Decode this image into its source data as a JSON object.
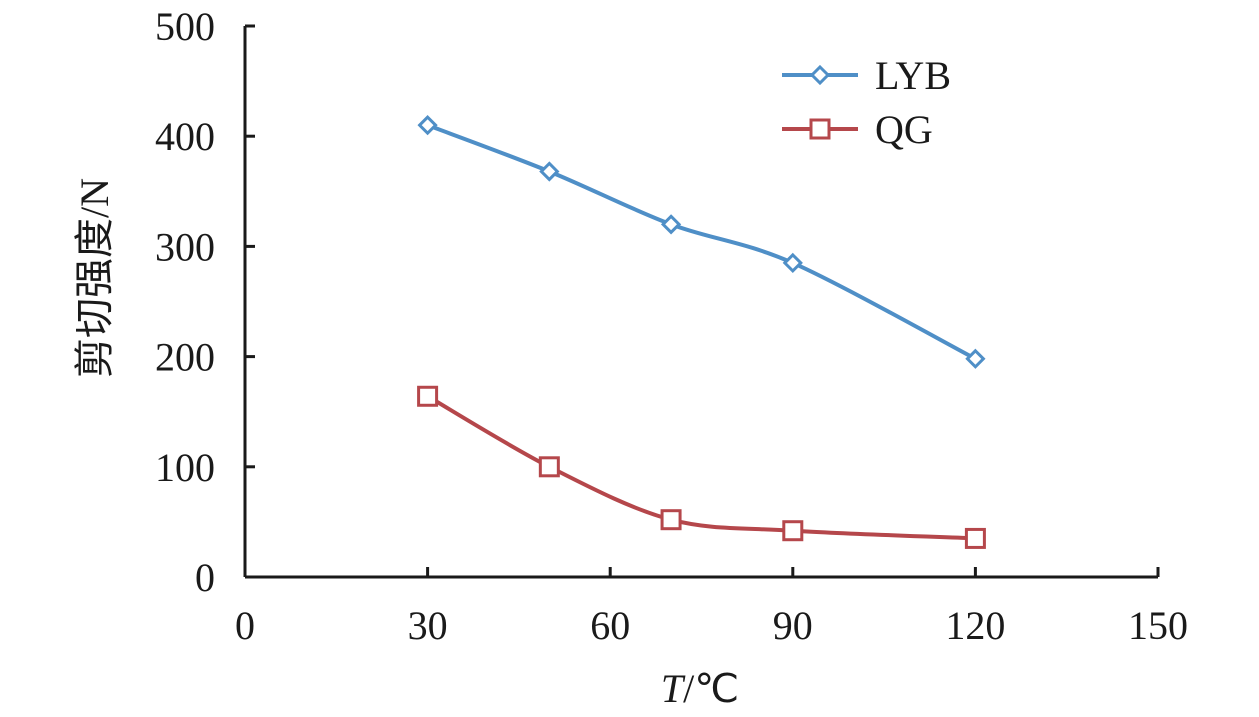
{
  "chart_data": {
    "type": "line",
    "title": "",
    "xlabel": {
      "italic": "T",
      "rest": "/℃"
    },
    "ylabel": "剪切强度/N",
    "xlim": [
      0,
      150
    ],
    "ylim": [
      0,
      500
    ],
    "xticks": [
      0,
      30,
      60,
      90,
      120,
      150
    ],
    "yticks": [
      0,
      100,
      200,
      300,
      400,
      500
    ],
    "x": [
      30,
      50,
      70,
      90,
      120
    ],
    "grid": false,
    "legend_position": "top-right",
    "series": [
      {
        "name": "LYB",
        "marker": "diamond",
        "color": "#4f8fc7",
        "values": [
          410,
          368,
          320,
          285,
          198
        ]
      },
      {
        "name": "QG",
        "marker": "square",
        "color": "#b5474b",
        "values": [
          164,
          100,
          52,
          42,
          35
        ]
      }
    ]
  }
}
